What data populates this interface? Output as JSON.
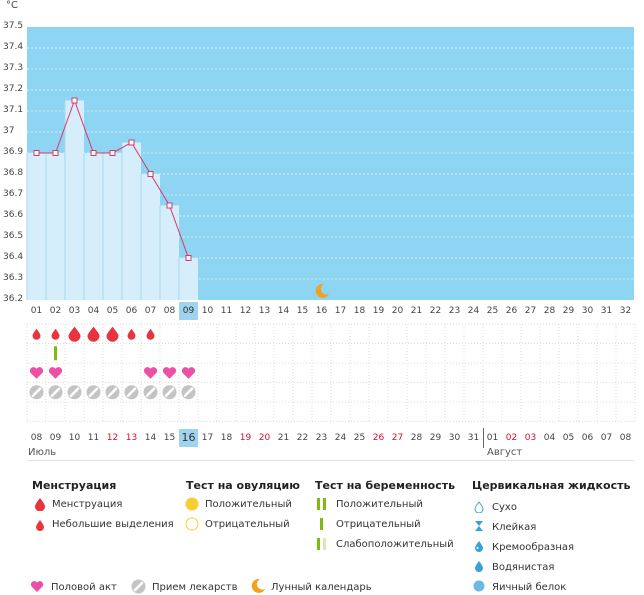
{
  "chart": {
    "unit_label": "°C",
    "y_ticks": [
      "37.5",
      "37.4",
      "37.3",
      "37.2",
      "37.1",
      "37",
      "36.9",
      "36.8",
      "36.7",
      "36.6",
      "36.5",
      "36.4",
      "36.3",
      "36.2"
    ],
    "chart_bg": "#8dd5f2",
    "bar_fill": "#d6eefb",
    "line_color": "#d63a66"
  },
  "chart_data": {
    "type": "line",
    "x": [
      "01",
      "02",
      "03",
      "04",
      "05",
      "06",
      "07",
      "08",
      "09"
    ],
    "values": [
      36.9,
      36.9,
      37.15,
      36.9,
      36.9,
      36.95,
      36.8,
      36.65,
      36.4
    ],
    "ylim": [
      36.2,
      37.5
    ]
  },
  "cycle_days": [
    "01",
    "02",
    "03",
    "04",
    "05",
    "06",
    "07",
    "08",
    "09",
    "10",
    "11",
    "12",
    "13",
    "14",
    "15",
    "16",
    "17",
    "18",
    "19",
    "20",
    "21",
    "22",
    "23",
    "24",
    "25",
    "26",
    "27",
    "28",
    "29",
    "30",
    "31",
    "32"
  ],
  "highlight_cycle_day": "09",
  "calendar": {
    "dates": [
      "08",
      "09",
      "10",
      "11",
      "12",
      "13",
      "14",
      "15",
      "16",
      "17",
      "18",
      "19",
      "20",
      "21",
      "22",
      "23",
      "24",
      "25",
      "26",
      "27",
      "28",
      "29",
      "30",
      "31",
      "01",
      "02",
      "03",
      "04",
      "05",
      "06",
      "07",
      "08"
    ],
    "red_dates_index": [
      4,
      5,
      11,
      12,
      18,
      19,
      25,
      26
    ],
    "highlight_index": 8,
    "month_left": "Июль",
    "month_right": "Август"
  },
  "rows": {
    "menstruation": [
      "small",
      "small",
      "big",
      "big",
      "big",
      "small",
      "small",
      "",
      "",
      "",
      "",
      "",
      "",
      "",
      "",
      "",
      "",
      "",
      "",
      "",
      "",
      "",
      "",
      "",
      "",
      "",
      "",
      "",
      "",
      "",
      "",
      ""
    ],
    "ovulation_test": [
      "",
      "positive",
      "",
      "",
      "",
      "",
      "",
      "",
      "",
      "",
      "",
      "",
      "",
      "",
      "",
      "",
      "",
      "",
      "",
      "",
      "",
      "",
      "",
      "",
      "",
      "",
      "",
      "",
      "",
      "",
      "",
      ""
    ],
    "intercourse": [
      "heart",
      "heart",
      "",
      "",
      "",
      "",
      "heart",
      "heart",
      "heart",
      "",
      "",
      "",
      "",
      "",
      "",
      "",
      "",
      "",
      "",
      "",
      "",
      "",
      "",
      "",
      "",
      "",
      "",
      "",
      "",
      "",
      "",
      ""
    ],
    "medication": [
      "pill",
      "pill",
      "pill",
      "pill",
      "pill",
      "pill",
      "pill",
      "pill",
      "pill",
      "",
      "",
      "",
      "",
      "",
      "",
      "",
      "",
      "",
      "",
      "",
      "",
      "",
      "",
      "",
      "",
      "",
      "",
      "",
      "",
      "",
      "",
      ""
    ]
  },
  "legend": {
    "menstruation": {
      "title": "Менструация",
      "items": [
        "Менструация",
        "Небольшие выделения"
      ]
    },
    "ovulation": {
      "title": "Тест на овуляцию",
      "items": [
        "Положительный",
        "Отрицательный"
      ]
    },
    "pregnancy": {
      "title": "Тест на беременность",
      "items": [
        "Положительный",
        "Отрицательный",
        "Слабоположительный"
      ]
    },
    "fluid": {
      "title": "Цервикальная жидкость",
      "items": [
        "Сухо",
        "Клейкая",
        "Кремообразная",
        "Водянистая",
        "Яичный белок"
      ]
    },
    "bottom": [
      "Половой акт",
      "Прием лекарств",
      "Лунный календарь"
    ]
  }
}
